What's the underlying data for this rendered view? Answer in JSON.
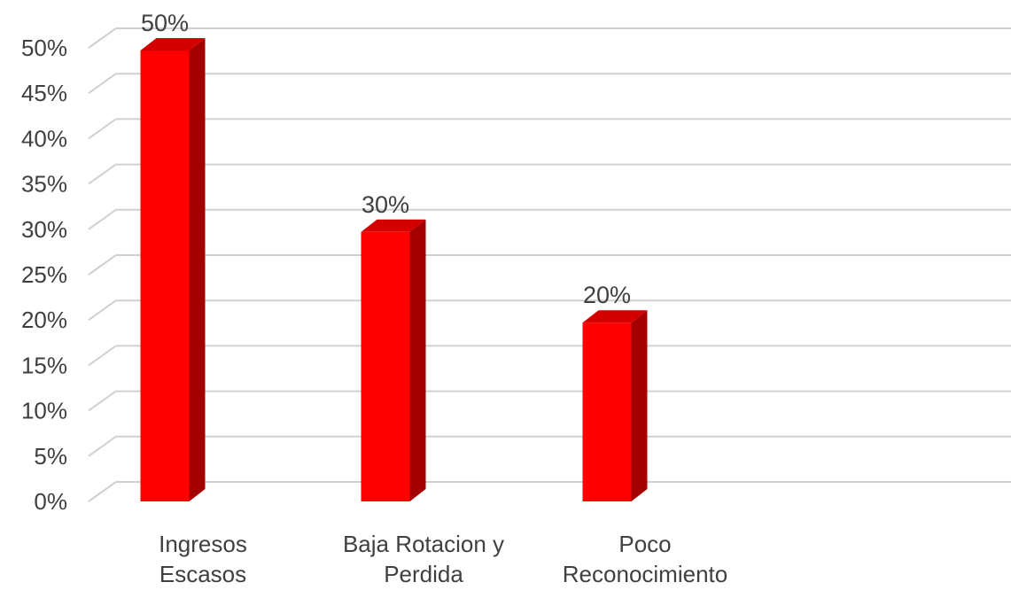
{
  "chart_data": {
    "type": "bar",
    "categories": [
      [
        "Ingresos",
        "Escasos"
      ],
      [
        "Baja Rotacion y",
        "Perdida"
      ],
      [
        "Poco",
        "Reconocimiento"
      ]
    ],
    "values": [
      50,
      30,
      20
    ],
    "data_labels": [
      "50%",
      "30%",
      "20%"
    ],
    "y_ticks": [
      0,
      5,
      10,
      15,
      20,
      25,
      30,
      35,
      40,
      45,
      50
    ],
    "y_tick_labels": [
      "0%",
      "5%",
      "10%",
      "15%",
      "20%",
      "25%",
      "30%",
      "35%",
      "40%",
      "45%",
      "50%"
    ],
    "ylim": [
      0,
      50
    ],
    "grid": true,
    "legend": "none",
    "title": "",
    "xlabel": "",
    "ylabel": "",
    "three_d": true,
    "colors": {
      "bar_front": "#ff0000",
      "bar_side": "#a50000",
      "bar_top": "#d40000",
      "grid": "#d0d0d0",
      "text": "#404040"
    }
  }
}
